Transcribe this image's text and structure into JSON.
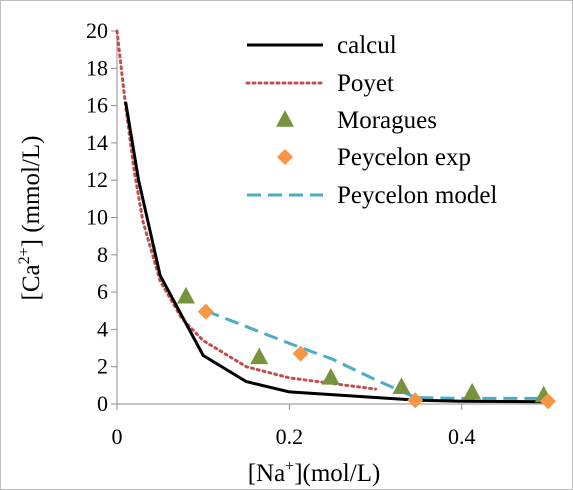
{
  "chart_data": {
    "type": "scatter",
    "title": "",
    "xlabel_parts": [
      "[Na",
      "+",
      "](mol/L)"
    ],
    "ylabel_parts": [
      "[Ca",
      "2+",
      "] (mmol/L)"
    ],
    "xlim": [
      0,
      0.5
    ],
    "ylim": [
      0,
      20
    ],
    "x_ticks": [
      0,
      0.2,
      0.4
    ],
    "x_tick_labels": [
      "0",
      "0.2",
      "0.4"
    ],
    "y_ticks": [
      0,
      2,
      4,
      6,
      8,
      10,
      12,
      14,
      16,
      18,
      20
    ],
    "y_tick_labels": [
      "0",
      "2",
      "4",
      "6",
      "8",
      "10",
      "12",
      "14",
      "16",
      "18",
      "20"
    ],
    "grid": false,
    "legend_position": "top-right",
    "series": [
      {
        "name": "calcul",
        "kind": "line",
        "style": "solid",
        "color": "#000000",
        "x": [
          0.01,
          0.025,
          0.05,
          0.1,
          0.15,
          0.2,
          0.3,
          0.35,
          0.4,
          0.5
        ],
        "y": [
          16.2,
          12,
          6.9,
          2.6,
          1.2,
          0.65,
          0.35,
          0.2,
          0.15,
          0.12
        ]
      },
      {
        "name": "Poyet",
        "kind": "line",
        "style": "dotted",
        "color": "#c0504d",
        "x": [
          0.0,
          0.01,
          0.02,
          0.03,
          0.05,
          0.075,
          0.1,
          0.15,
          0.2,
          0.25,
          0.3
        ],
        "y": [
          20.0,
          16.0,
          12.5,
          9.8,
          6.6,
          4.6,
          3.4,
          2.0,
          1.4,
          1.1,
          0.8
        ]
      },
      {
        "name": "Moragues",
        "kind": "marker",
        "marker": "triangle",
        "color": "#77933c",
        "x": [
          0.08,
          0.165,
          0.248,
          0.33,
          0.412,
          0.495
        ],
        "y": [
          5.75,
          2.5,
          1.4,
          0.9,
          0.6,
          0.45
        ]
      },
      {
        "name": "Peycelon exp",
        "kind": "marker",
        "marker": "diamond",
        "color": "#f79646",
        "x": [
          0.103,
          0.213,
          0.346,
          0.5
        ],
        "y": [
          4.95,
          2.7,
          0.2,
          0.15
        ]
      },
      {
        "name": "Peycelon model",
        "kind": "line",
        "style": "dashed",
        "color": "#4bacc6",
        "x": [
          0.103,
          0.2,
          0.25,
          0.3,
          0.346,
          0.4,
          0.5
        ],
        "y": [
          5.0,
          3.25,
          2.4,
          1.3,
          0.35,
          0.3,
          0.3
        ]
      }
    ]
  }
}
